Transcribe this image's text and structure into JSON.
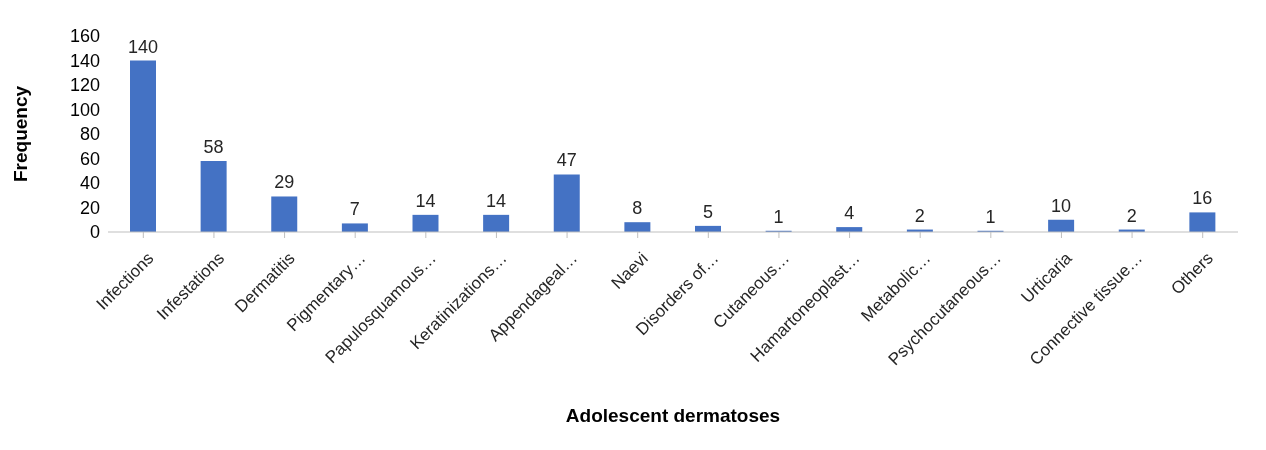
{
  "chart_data": {
    "type": "bar",
    "xlabel": "Adolescent dermatoses",
    "ylabel": "Frequency",
    "categories": [
      "Infections",
      "Infestations",
      "Dermatitis",
      "Pigmentary…",
      "Papulosquamous…",
      "Keratinizations…",
      "Appendageal…",
      "Naevi",
      "Disorders of…",
      "Cutaneous…",
      "Hamartoneoplast…",
      "Metabolic…",
      "Psychocutaneous…",
      "Urticaria",
      "Connective tissue…",
      "Others"
    ],
    "values": [
      140,
      58,
      29,
      7,
      14,
      14,
      47,
      8,
      5,
      1,
      4,
      2,
      1,
      10,
      2,
      16
    ],
    "color": "#4472c4",
    "ylim": [
      0,
      160
    ],
    "yticks": [
      0,
      20,
      40,
      60,
      80,
      100,
      120,
      140,
      160
    ],
    "data_labels": true
  }
}
